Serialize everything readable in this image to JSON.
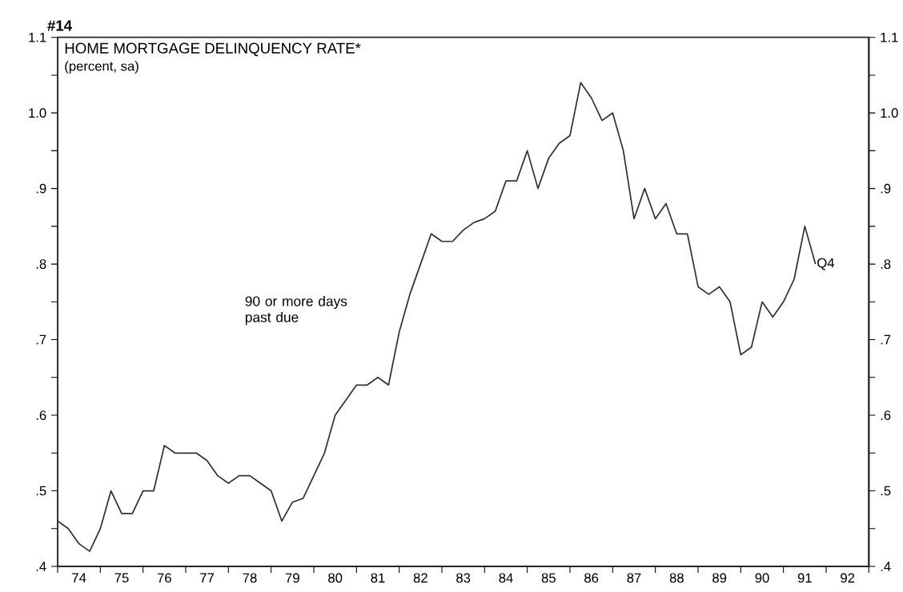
{
  "chart_data": {
    "type": "line",
    "title": "HOME MORTGAGE DELINQUENCY RATE*",
    "subtitle": "(percent, sa)",
    "annotations": [
      "#14",
      {
        "text": "Q4",
        "x": 91.75,
        "y": 0.8
      }
    ],
    "x": [
      74,
      74.25,
      74.5,
      74.75,
      75,
      75.25,
      75.5,
      75.75,
      76,
      76.25,
      76.5,
      76.75,
      77,
      77.25,
      77.5,
      77.75,
      78,
      78.25,
      78.5,
      78.75,
      79,
      79.25,
      79.5,
      79.75,
      80,
      80.25,
      80.5,
      80.75,
      81,
      81.25,
      81.5,
      81.75,
      82,
      82.25,
      82.5,
      82.75,
      83,
      83.25,
      83.5,
      83.75,
      84,
      84.25,
      84.5,
      84.75,
      85,
      85.25,
      85.5,
      85.75,
      86,
      86.25,
      86.5,
      86.75,
      87,
      87.25,
      87.5,
      87.75,
      88,
      88.25,
      88.5,
      88.75,
      89,
      89.25,
      89.5,
      89.75,
      90,
      90.25,
      90.5,
      90.75,
      91,
      91.25,
      91.5,
      91.75
    ],
    "series": [
      {
        "name": "90 or more days past due",
        "color": "#333333",
        "values": [
          0.46,
          0.45,
          0.43,
          0.42,
          0.45,
          0.5,
          0.47,
          0.47,
          0.5,
          0.5,
          0.56,
          0.55,
          0.55,
          0.55,
          0.54,
          0.52,
          0.51,
          0.52,
          0.52,
          0.51,
          0.5,
          0.46,
          0.485,
          0.49,
          0.52,
          0.55,
          0.6,
          0.62,
          0.64,
          0.64,
          0.65,
          0.64,
          0.71,
          0.76,
          0.8,
          0.84,
          0.83,
          0.83,
          0.845,
          0.855,
          0.86,
          0.87,
          0.91,
          0.91,
          0.95,
          0.9,
          0.94,
          0.96,
          0.97,
          1.04,
          1.02,
          0.99,
          1.0,
          0.95,
          0.86,
          0.9,
          0.86,
          0.88,
          0.84,
          0.84,
          0.77,
          0.76,
          0.77,
          0.75,
          0.68,
          0.69,
          0.75,
          0.73,
          0.75,
          0.78,
          0.85,
          0.8
        ]
      }
    ],
    "xlim": [
      74,
      93
    ],
    "xticks": [
      {
        "value": 74,
        "label": null
      },
      {
        "value": 75,
        "label": null
      },
      {
        "value": 76,
        "label": null
      },
      {
        "value": 77,
        "label": null
      },
      {
        "value": 78,
        "label": null
      },
      {
        "value": 79,
        "label": null
      },
      {
        "value": 80,
        "label": null
      },
      {
        "value": 81,
        "label": null
      },
      {
        "value": 82,
        "label": null
      },
      {
        "value": 83,
        "label": null
      },
      {
        "value": 84,
        "label": null
      },
      {
        "value": 85,
        "label": null
      },
      {
        "value": 86,
        "label": null
      },
      {
        "value": 87,
        "label": null
      },
      {
        "value": 88,
        "label": null
      },
      {
        "value": 89,
        "label": null
      },
      {
        "value": 90,
        "label": null
      },
      {
        "value": 91,
        "label": null
      },
      {
        "value": 92,
        "label": null
      },
      {
        "value": 93,
        "label": null
      },
      {
        "value": 74.5,
        "label": "74"
      },
      {
        "value": 75.5,
        "label": "75"
      },
      {
        "value": 76.5,
        "label": "76"
      },
      {
        "value": 77.5,
        "label": "77"
      },
      {
        "value": 78.5,
        "label": "78"
      },
      {
        "value": 79.5,
        "label": "79"
      },
      {
        "value": 80.5,
        "label": "80"
      },
      {
        "value": 81.5,
        "label": "81"
      },
      {
        "value": 82.5,
        "label": "82"
      },
      {
        "value": 83.5,
        "label": "83"
      },
      {
        "value": 84.5,
        "label": "84"
      },
      {
        "value": 85.5,
        "label": "85"
      },
      {
        "value": 86.5,
        "label": "86"
      },
      {
        "value": 87.5,
        "label": "87"
      },
      {
        "value": 88.5,
        "label": "88"
      },
      {
        "value": 89.5,
        "label": "89"
      },
      {
        "value": 90.5,
        "label": "90"
      },
      {
        "value": 91.5,
        "label": "91"
      },
      {
        "value": 92.5,
        "label": "92"
      }
    ],
    "ylim": [
      0.4,
      1.1
    ],
    "yticks": [
      {
        "value": 0.4,
        "label": ".4"
      },
      {
        "value": 0.45,
        "label": null
      },
      {
        "value": 0.5,
        "label": ".5"
      },
      {
        "value": 0.55,
        "label": null
      },
      {
        "value": 0.6,
        "label": ".6"
      },
      {
        "value": 0.65,
        "label": null
      },
      {
        "value": 0.7,
        "label": ".7"
      },
      {
        "value": 0.75,
        "label": null
      },
      {
        "value": 0.8,
        "label": ".8"
      },
      {
        "value": 0.85,
        "label": null
      },
      {
        "value": 0.9,
        "label": ".9"
      },
      {
        "value": 0.95,
        "label": null
      },
      {
        "value": 1.0,
        "label": "1.0"
      },
      {
        "value": 1.05,
        "label": null
      },
      1.1
    ],
    "y2lim": [
      0.4,
      1.1
    ],
    "y2ticks": [
      {
        "value": 0.4,
        "label": ".4"
      },
      {
        "value": 0.45,
        "label": null
      },
      {
        "value": 0.5,
        "label": ".5"
      },
      {
        "value": 0.55,
        "label": null
      },
      {
        "value": 0.6,
        "label": ".6"
      },
      {
        "value": 0.65,
        "label": null
      },
      {
        "value": 0.7,
        "label": ".7"
      },
      {
        "value": 0.75,
        "label": null
      },
      {
        "value": 0.8,
        "label": ".8"
      },
      {
        "value": 0.85,
        "label": null
      },
      {
        "value": 0.9,
        "label": ".9"
      },
      {
        "value": 0.95,
        "label": null
      },
      {
        "value": 1.0,
        "label": "1.0"
      },
      {
        "value": 1.05,
        "label": null
      },
      1.1
    ]
  }
}
